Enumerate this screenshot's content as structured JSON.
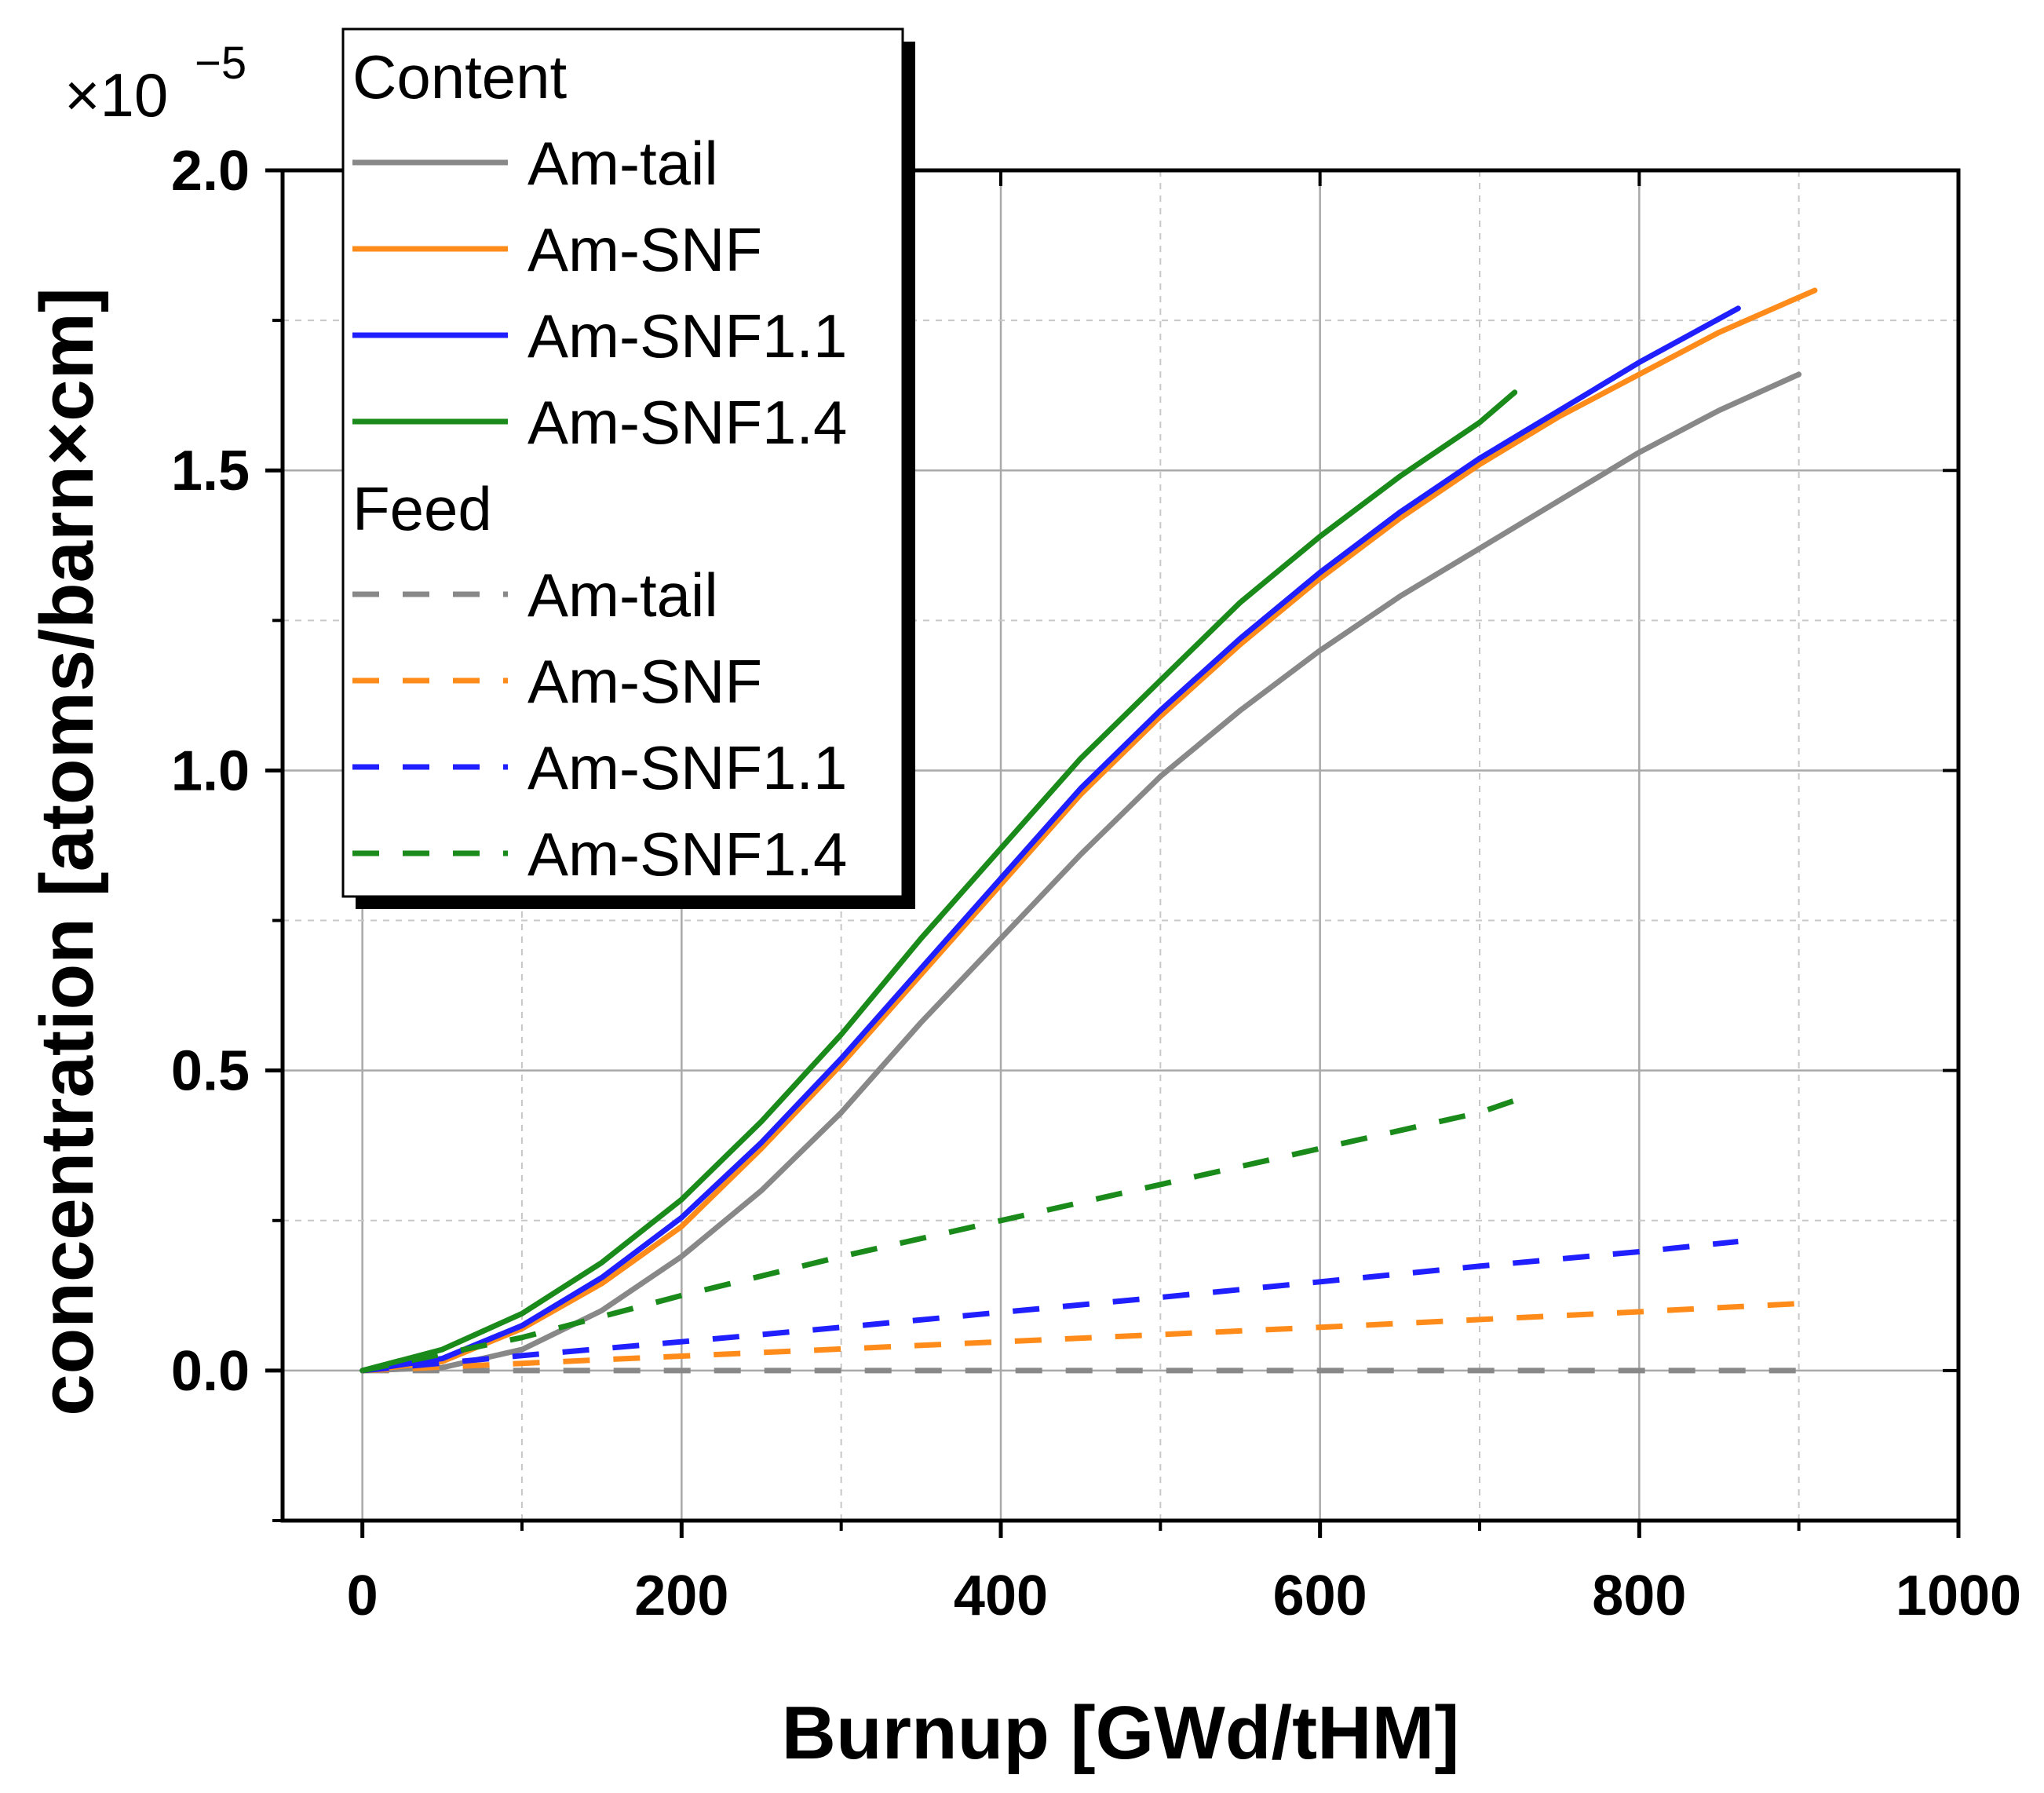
{
  "chart_data": {
    "type": "line",
    "xlabel": "Burnup [GWd/tHM]",
    "ylabel": "concentration [atoms/barn×cm]",
    "y_multiplier": {
      "base": "×10",
      "exponent": "−5"
    },
    "xlim": [
      -50,
      1000
    ],
    "ylim": [
      -0.25,
      2.0
    ],
    "xticks": [
      0,
      200,
      400,
      600,
      800,
      1000
    ],
    "xtick_labels": [
      "0",
      "200",
      "400",
      "600",
      "800",
      "1000"
    ],
    "yticks": [
      0.0,
      0.5,
      1.0,
      1.5,
      2.0
    ],
    "ytick_labels": [
      "0.0",
      "0.5",
      "1.0",
      "1.5",
      "2.0"
    ],
    "minor_x": [
      100,
      300,
      500,
      700,
      900
    ],
    "minor_y": [
      -0.25,
      0.25,
      0.75,
      1.25,
      1.75
    ],
    "grid": true,
    "legend_position": "top-left",
    "legend": {
      "groups": [
        {
          "title": "Content",
          "entries": [
            "Am-tail",
            "Am-SNF",
            "Am-SNF1.1",
            "Am-SNF1.4"
          ]
        },
        {
          "title": "Feed",
          "entries": [
            "Am-tail",
            "Am-SNF",
            "Am-SNF1.1",
            "Am-SNF1.4"
          ]
        }
      ]
    },
    "series": [
      {
        "name": "Am-tail",
        "group": "Content",
        "dash": false,
        "color": "#888888",
        "x": [
          0,
          50,
          100,
          150,
          200,
          250,
          300,
          350,
          400,
          450,
          500,
          550,
          600,
          650,
          700,
          750,
          800,
          850,
          900
        ],
        "y": [
          0.0,
          0.005,
          0.035,
          0.1,
          0.19,
          0.3,
          0.43,
          0.58,
          0.72,
          0.86,
          0.99,
          1.1,
          1.2,
          1.29,
          1.37,
          1.45,
          1.53,
          1.6,
          1.66
        ]
      },
      {
        "name": "Am-SNF",
        "group": "Content",
        "dash": false,
        "color": "#ff8c1a",
        "x": [
          0,
          50,
          100,
          150,
          200,
          250,
          300,
          350,
          400,
          450,
          500,
          550,
          600,
          650,
          700,
          750,
          800,
          850,
          910
        ],
        "y": [
          0.0,
          0.015,
          0.07,
          0.145,
          0.24,
          0.37,
          0.51,
          0.66,
          0.81,
          0.96,
          1.09,
          1.21,
          1.32,
          1.42,
          1.51,
          1.59,
          1.66,
          1.73,
          1.8
        ]
      },
      {
        "name": "Am-SNF1.1",
        "group": "Content",
        "dash": false,
        "color": "#1f1fff",
        "x": [
          0,
          50,
          100,
          150,
          200,
          250,
          300,
          350,
          400,
          450,
          500,
          550,
          600,
          650,
          700,
          750,
          800,
          862
        ],
        "y": [
          0.0,
          0.02,
          0.075,
          0.155,
          0.255,
          0.38,
          0.52,
          0.67,
          0.82,
          0.97,
          1.1,
          1.22,
          1.33,
          1.43,
          1.52,
          1.6,
          1.68,
          1.77
        ]
      },
      {
        "name": "Am-SNF1.4",
        "group": "Content",
        "dash": false,
        "color": "#1a8a1a",
        "x": [
          0,
          50,
          100,
          150,
          200,
          250,
          300,
          350,
          400,
          450,
          500,
          550,
          600,
          650,
          700,
          722
        ],
        "y": [
          0.0,
          0.035,
          0.095,
          0.18,
          0.285,
          0.415,
          0.56,
          0.72,
          0.87,
          1.02,
          1.15,
          1.28,
          1.39,
          1.49,
          1.58,
          1.63
        ]
      },
      {
        "name": "Am-tail",
        "group": "Feed",
        "dash": true,
        "color": "#888888",
        "x": [
          0,
          100,
          200,
          300,
          400,
          500,
          600,
          700,
          800,
          900
        ],
        "y": [
          0.0,
          0.0,
          0.0,
          0.0,
          0.0,
          0.0,
          0.0,
          0.0,
          0.0,
          0.0
        ]
      },
      {
        "name": "Am-SNF",
        "group": "Feed",
        "dash": true,
        "color": "#ff8c1a",
        "x": [
          0,
          100,
          200,
          300,
          400,
          500,
          600,
          700,
          800,
          910
        ],
        "y": [
          0.0,
          0.012,
          0.024,
          0.036,
          0.048,
          0.06,
          0.072,
          0.085,
          0.098,
          0.113
        ]
      },
      {
        "name": "Am-SNF1.1",
        "group": "Feed",
        "dash": true,
        "color": "#1f1fff",
        "x": [
          0,
          100,
          200,
          300,
          400,
          500,
          600,
          700,
          800,
          862
        ],
        "y": [
          0.0,
          0.025,
          0.048,
          0.072,
          0.097,
          0.122,
          0.148,
          0.174,
          0.198,
          0.215
        ]
      },
      {
        "name": "Am-SNF1.4",
        "group": "Feed",
        "dash": true,
        "color": "#1a8a1a",
        "x": [
          0,
          100,
          150,
          200,
          300,
          400,
          500,
          600,
          700,
          722
        ],
        "y": [
          0.0,
          0.055,
          0.09,
          0.125,
          0.19,
          0.25,
          0.31,
          0.37,
          0.43,
          0.45
        ]
      }
    ]
  }
}
